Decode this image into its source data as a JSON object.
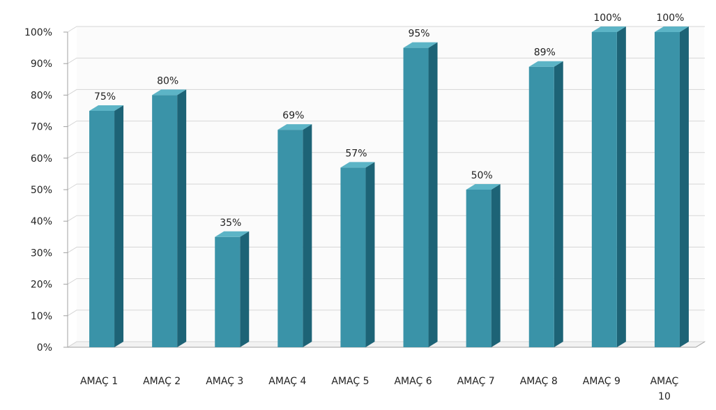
{
  "chart_data": {
    "type": "bar",
    "title": "",
    "xlabel": "",
    "ylabel": "",
    "categories": [
      "AMAÇ 1",
      "AMAÇ 2",
      "AMAÇ 3",
      "AMAÇ 4",
      "AMAÇ 5",
      "AMAÇ 6",
      "AMAÇ 7",
      "AMAÇ 8",
      "AMAÇ 9",
      "AMAÇ 10"
    ],
    "values": [
      75,
      80,
      35,
      69,
      57,
      95,
      50,
      89,
      100,
      100
    ],
    "data_labels": [
      "75%",
      "80%",
      "35%",
      "69%",
      "57%",
      "95%",
      "50%",
      "89%",
      "100%",
      "100%"
    ],
    "ylim": [
      0,
      100
    ],
    "yticks": [
      0,
      10,
      20,
      30,
      40,
      50,
      60,
      70,
      80,
      90,
      100
    ],
    "ytick_labels": [
      "0%",
      "10%",
      "20%",
      "30%",
      "40%",
      "50%",
      "60%",
      "70%",
      "80%",
      "90%",
      "100%"
    ],
    "grid": true,
    "legend": "none",
    "style": "3d-column",
    "colors": {
      "bar_front": "#3a93a8",
      "bar_side": "#1d6376",
      "bar_top": "#5cb4c6",
      "grid": "#d6d6d6",
      "axis": "#a0a0a0",
      "text": "#222222",
      "wall": "#fbfbfb"
    }
  }
}
